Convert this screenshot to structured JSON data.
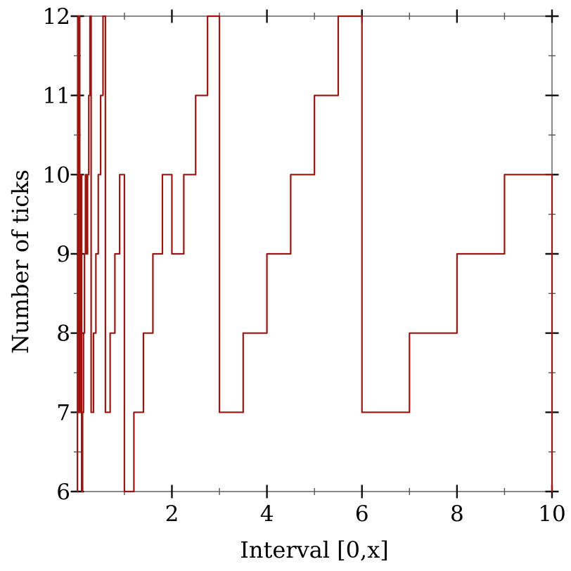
{
  "chart_data": {
    "type": "line",
    "subtype": "step",
    "title": "",
    "xlabel": "Interval [0,x]",
    "ylabel": "Number of ticks",
    "xlim": [
      0.01,
      10
    ],
    "ylim": [
      6,
      12
    ],
    "grid": "off",
    "legend": "none",
    "line_color": "#9e1510",
    "axis_color": "#8a8a8a",
    "major_tick_color": "#111111",
    "minor_tick_color": "#555555",
    "x_major_ticks": [
      2,
      4,
      6,
      8,
      10
    ],
    "x_tick_labels": [
      "2",
      "4",
      "6",
      "8",
      "10"
    ],
    "x_minor_ticks": [
      1,
      3,
      5,
      7,
      9
    ],
    "y_major_ticks": [
      6,
      7,
      8,
      9,
      10,
      11,
      12
    ],
    "y_tick_labels": [
      "6",
      "7",
      "8",
      "9",
      "10",
      "11",
      "12"
    ],
    "y_minor_ticks": [
      6.5,
      7.5,
      8.5,
      9.5,
      10.5,
      11.5
    ],
    "steps_comment": "Each entry is [x_start, number_of_ticks]; the value holds until the next x_start. Final entry is the drop at x=10.",
    "steps": [
      [
        0.01,
        6
      ],
      [
        0.012,
        7
      ],
      [
        0.014,
        8
      ],
      [
        0.016,
        9
      ],
      [
        0.018,
        10
      ],
      [
        0.02,
        9
      ],
      [
        0.0225,
        10
      ],
      [
        0.025,
        11
      ],
      [
        0.0275,
        12
      ],
      [
        0.03,
        7
      ],
      [
        0.035,
        8
      ],
      [
        0.04,
        9
      ],
      [
        0.045,
        10
      ],
      [
        0.05,
        11
      ],
      [
        0.055,
        12
      ],
      [
        0.06,
        7
      ],
      [
        0.07,
        8
      ],
      [
        0.08,
        9
      ],
      [
        0.09,
        10
      ],
      [
        0.1,
        6
      ],
      [
        0.12,
        7
      ],
      [
        0.14,
        8
      ],
      [
        0.16,
        9
      ],
      [
        0.18,
        10
      ],
      [
        0.2,
        9
      ],
      [
        0.225,
        10
      ],
      [
        0.25,
        11
      ],
      [
        0.275,
        12
      ],
      [
        0.3,
        7
      ],
      [
        0.35,
        8
      ],
      [
        0.4,
        9
      ],
      [
        0.45,
        10
      ],
      [
        0.5,
        11
      ],
      [
        0.55,
        12
      ],
      [
        0.6,
        7
      ],
      [
        0.7,
        8
      ],
      [
        0.8,
        9
      ],
      [
        0.9,
        10
      ],
      [
        1.0,
        6
      ],
      [
        1.2,
        7
      ],
      [
        1.4,
        8
      ],
      [
        1.6,
        9
      ],
      [
        1.8,
        10
      ],
      [
        2.0,
        9
      ],
      [
        2.25,
        10
      ],
      [
        2.5,
        11
      ],
      [
        2.75,
        12
      ],
      [
        3.0,
        7
      ],
      [
        3.5,
        8
      ],
      [
        4.0,
        9
      ],
      [
        4.5,
        10
      ],
      [
        5.0,
        11
      ],
      [
        5.5,
        12
      ],
      [
        6.0,
        7
      ],
      [
        7.0,
        8
      ],
      [
        8.0,
        9
      ],
      [
        9.0,
        10
      ],
      [
        10.0,
        6
      ]
    ]
  }
}
